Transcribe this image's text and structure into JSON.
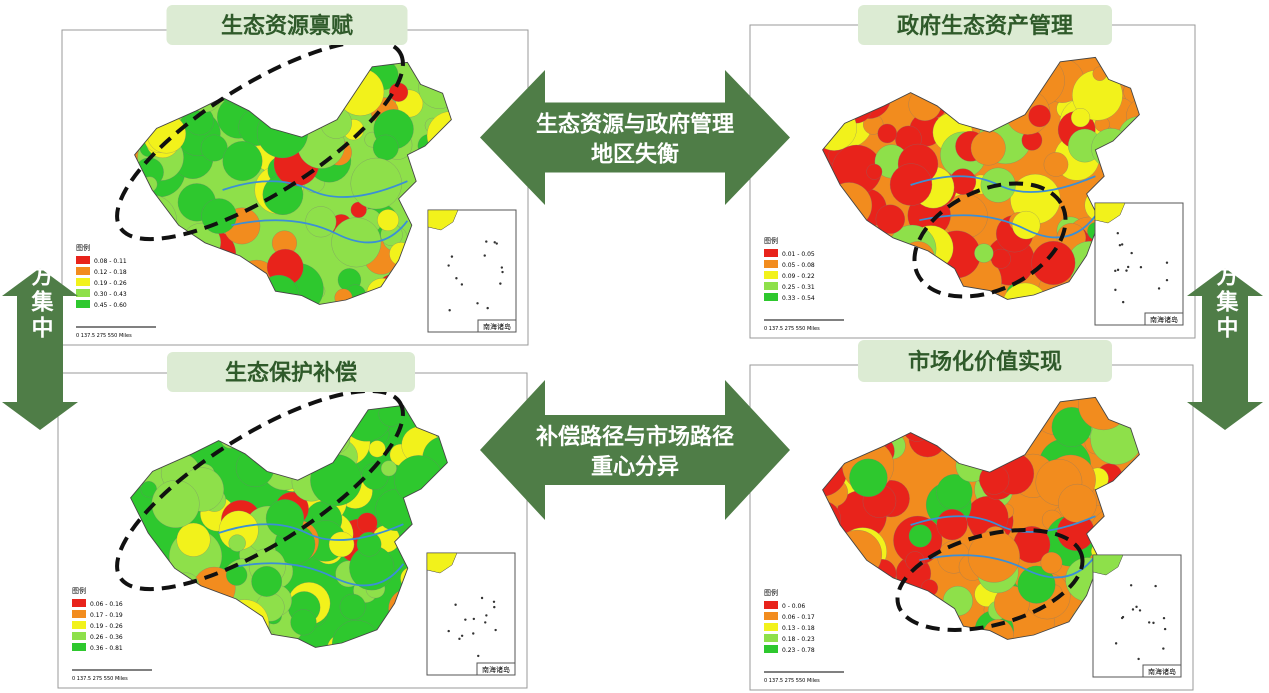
{
  "panels": [
    {
      "title": "生态资源禀赋",
      "legend": {
        "title": "图例",
        "items": [
          "0.08 - 0.11",
          "0.12 - 0.18",
          "0.19 - 0.26",
          "0.30 - 0.43",
          "0.45 - 0.60"
        ]
      },
      "scale": "0  137.5  275    550 Miles",
      "inset": "南海诸岛"
    },
    {
      "title": "政府生态资产管理",
      "legend": {
        "title": "图例",
        "items": [
          "0.01 - 0.05",
          "0.05 - 0.08",
          "0.09 - 0.22",
          "0.25 - 0.31",
          "0.33 - 0.54"
        ]
      },
      "scale": "0  137.5  275    550 Miles",
      "inset": "南海诸岛"
    },
    {
      "title": "生态保护补偿",
      "legend": {
        "title": "图例",
        "items": [
          "0.06 - 0.16",
          "0.17 - 0.19",
          "0.19 - 0.26",
          "0.26 - 0.36",
          "0.36 - 0.81"
        ]
      },
      "scale": "0  137.5  275    550 Miles",
      "inset": "南海诸岛"
    },
    {
      "title": "市场化价值实现",
      "legend": {
        "title": "图例",
        "items": [
          "0 - 0.06",
          "0.06 - 0.17",
          "0.13 - 0.18",
          "0.18 - 0.23",
          "0.23 - 0.78"
        ]
      },
      "scale": "0  137.5  275    550 Miles",
      "inset": "南海诸岛"
    }
  ],
  "arrows": [
    {
      "lines": [
        "生态资源与政府管理",
        "地区失衡"
      ]
    },
    {
      "lines": [
        "补偿路径与市场路径",
        "重心分异"
      ]
    }
  ],
  "side_labels": [
    "北方集中",
    "南方集中"
  ]
}
